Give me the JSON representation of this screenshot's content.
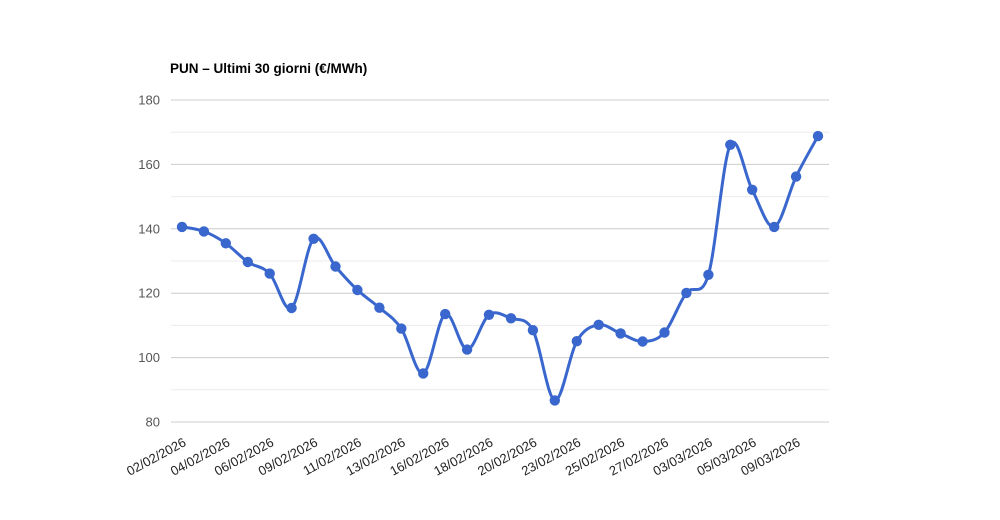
{
  "chart_data": {
    "type": "line",
    "title": "PUN – Ultimi 30 giorni (€/MWh)",
    "n_points": 30,
    "values": [
      140.6,
      139.2,
      135.5,
      129.7,
      126.1,
      115.4,
      136.9,
      128.3,
      121.0,
      115.5,
      109.0,
      95.1,
      113.5,
      102.5,
      113.3,
      112.2,
      108.5,
      86.7,
      105.1,
      110.2,
      107.5,
      105.0,
      107.8,
      120.1,
      125.7,
      166.1,
      152.1,
      140.6,
      156.2,
      168.8
    ],
    "x_tick_indices": [
      0,
      2,
      4,
      6,
      8,
      10,
      12,
      14,
      16,
      18,
      20,
      22,
      24,
      26,
      28
    ],
    "x_tick_labels": [
      "02/02/2026",
      "04/02/2026",
      "06/02/2026",
      "09/02/2026",
      "11/02/2026",
      "13/02/2026",
      "16/02/2026",
      "18/02/2026",
      "20/02/2026",
      "23/02/2026",
      "25/02/2026",
      "27/02/2026",
      "03/03/2026",
      "05/03/2026",
      "09/03/2026"
    ],
    "y_ticks": [
      80,
      100,
      120,
      140,
      160,
      180
    ],
    "y_minor_step": 10,
    "ylim": [
      80,
      180
    ],
    "grid": true,
    "legend_position": "none",
    "x_label_rotation_deg": -28.5,
    "colors": {
      "line": "#3a67cd",
      "marker": "#3a67cd",
      "grid_major": "#cccccc",
      "grid_minor": "#ebebeb",
      "y_tick_text": "#565656",
      "x_tick_text": "#222222",
      "title_text": "#000000",
      "background": "#ffffff"
    }
  }
}
